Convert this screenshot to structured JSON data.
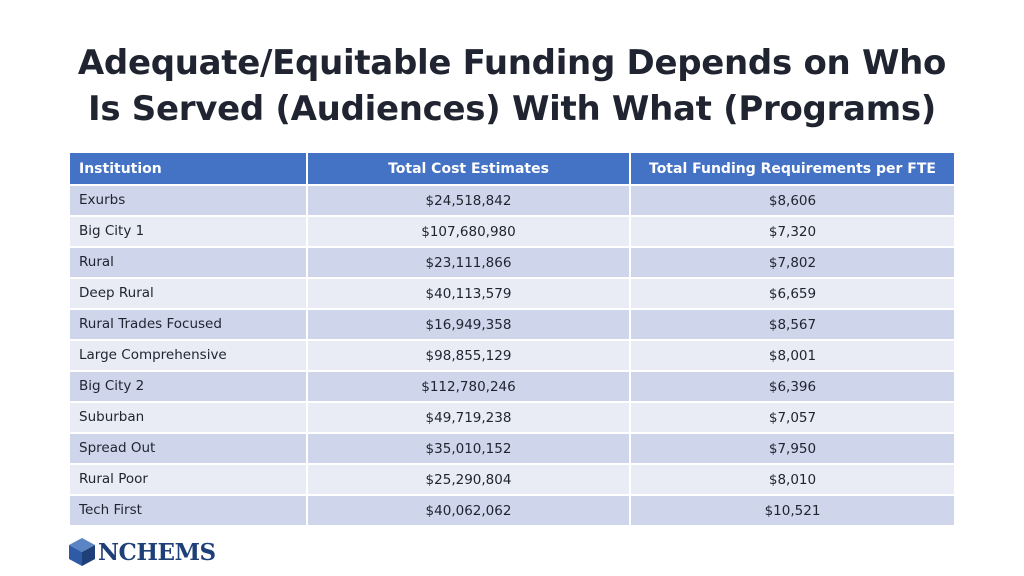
{
  "slide": {
    "title_line1": "Adequate/Equitable Funding Depends on Who",
    "title_line2": "Is Served (Audiences) With What (Programs)"
  },
  "table": {
    "headers": [
      "Institution",
      "Total Cost Estimates",
      "Total Funding Requirements per FTE"
    ],
    "rows": [
      {
        "institution": "Exurbs",
        "total_cost": "$24,518,842",
        "per_fte": "$8,606"
      },
      {
        "institution": "Big City 1",
        "total_cost": "$107,680,980",
        "per_fte": "$7,320"
      },
      {
        "institution": "Rural",
        "total_cost": "$23,111,866",
        "per_fte": "$7,802"
      },
      {
        "institution": "Deep Rural",
        "total_cost": "$40,113,579",
        "per_fte": "$6,659"
      },
      {
        "institution": "Rural Trades Focused",
        "total_cost": "$16,949,358",
        "per_fte": "$8,567"
      },
      {
        "institution": "Large Comprehensive",
        "total_cost": "$98,855,129",
        "per_fte": "$8,001"
      },
      {
        "institution": "Big City 2",
        "total_cost": "$112,780,246",
        "per_fte": "$6,396"
      },
      {
        "institution": "Suburban",
        "total_cost": "$49,719,238",
        "per_fte": "$7,057"
      },
      {
        "institution": "Spread Out",
        "total_cost": "$35,010,152",
        "per_fte": "$7,950"
      },
      {
        "institution": "Rural Poor",
        "total_cost": "$25,290,804",
        "per_fte": "$8,010"
      },
      {
        "institution": "Tech First",
        "total_cost": "$40,062,062",
        "per_fte": "$10,521"
      }
    ]
  },
  "logo": {
    "text": "NCHEMS",
    "icon": "cube-icon"
  },
  "colors": {
    "header_blue": "#4472c4",
    "row_dark": "#cfd5ea",
    "row_light": "#e9ebf5",
    "logo_blue": "#1f3f78"
  }
}
